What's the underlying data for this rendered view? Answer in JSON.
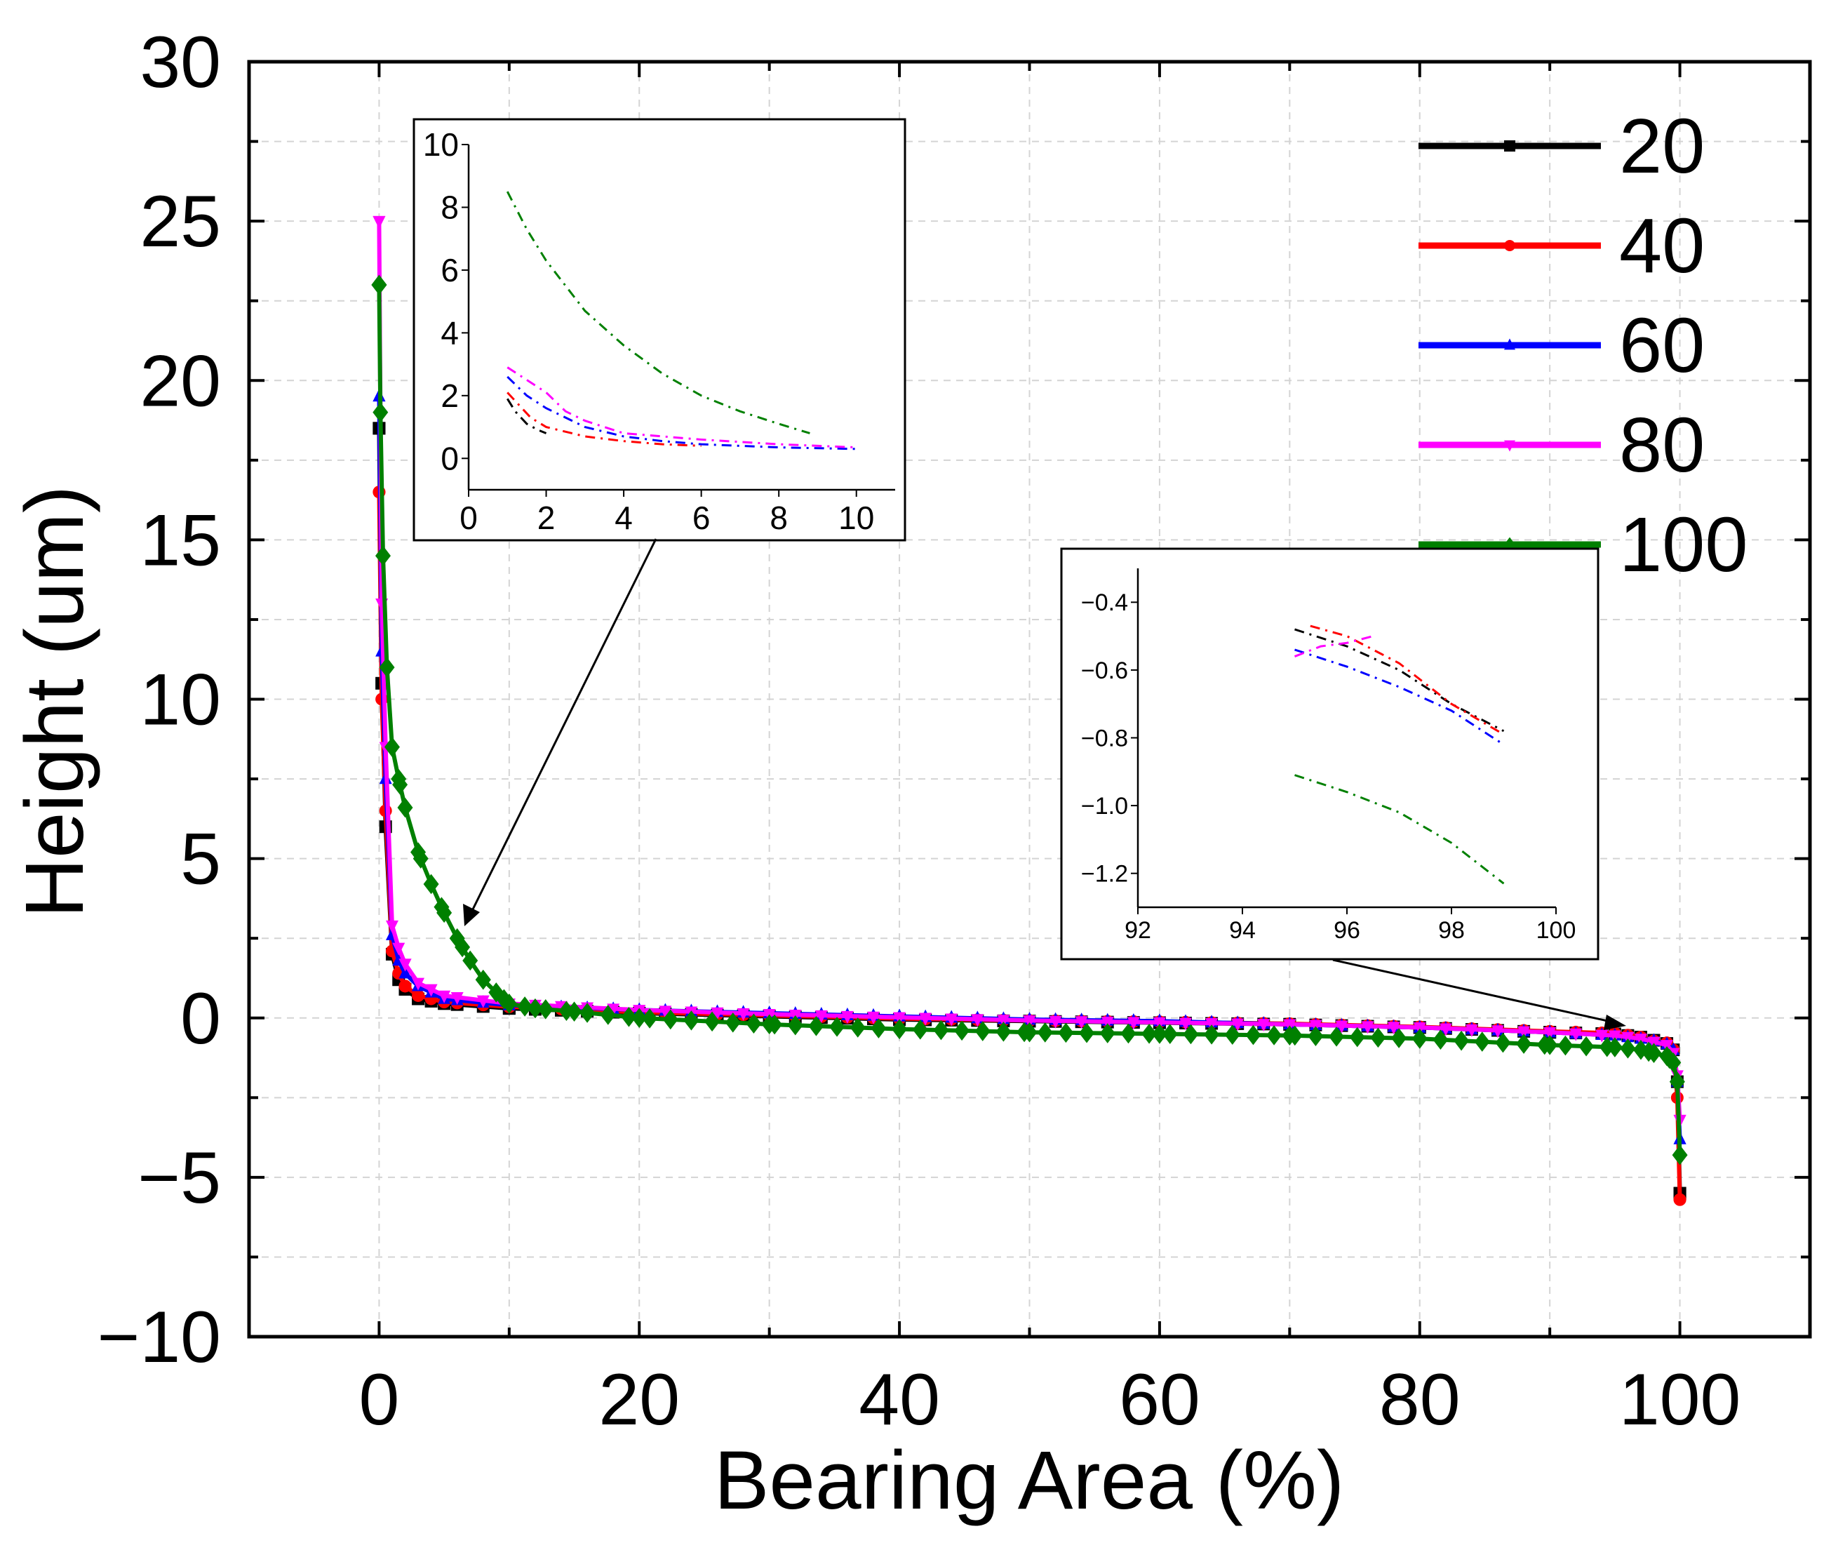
{
  "chart_data": {
    "type": "line",
    "xlabel": "Bearing Area (%)",
    "ylabel": "Height (um)",
    "xlim": [
      -10,
      110
    ],
    "ylim": [
      -10,
      30
    ],
    "xticks": [
      "0",
      "20",
      "40",
      "60",
      "80",
      "100"
    ],
    "yticks": [
      "30",
      "25",
      "20",
      "15",
      "10",
      "5",
      "0",
      "−5",
      "−10"
    ],
    "legend_position": "top-right",
    "legend": [
      "20",
      "40",
      "60",
      "80",
      "100"
    ],
    "series": [
      {
        "name": "20",
        "color": "#000000",
        "marker": "square",
        "x": [
          0,
          0.2,
          0.5,
          1,
          1.5,
          2,
          3,
          5,
          10,
          20,
          30,
          40,
          50,
          60,
          70,
          80,
          90,
          95,
          97,
          98,
          99,
          99.5,
          99.8,
          100
        ],
        "y": [
          18.5,
          10.5,
          6.0,
          2.0,
          1.2,
          0.9,
          0.6,
          0.45,
          0.3,
          0.15,
          0.05,
          -0.05,
          -0.1,
          -0.15,
          -0.2,
          -0.3,
          -0.45,
          -0.5,
          -0.6,
          -0.7,
          -0.8,
          -1.0,
          -2.0,
          -5.5
        ]
      },
      {
        "name": "40",
        "color": "#ff0000",
        "marker": "circle",
        "x": [
          0,
          0.2,
          0.5,
          1,
          1.5,
          2,
          3,
          5,
          10,
          20,
          30,
          40,
          50,
          60,
          70,
          80,
          90,
          95,
          97,
          98,
          99,
          99.5,
          99.8,
          100
        ],
        "y": [
          16.5,
          10.0,
          6.5,
          2.1,
          1.4,
          1.0,
          0.7,
          0.5,
          0.35,
          0.18,
          0.08,
          -0.02,
          -0.08,
          -0.12,
          -0.18,
          -0.28,
          -0.42,
          -0.48,
          -0.6,
          -0.72,
          -0.78,
          -1.0,
          -2.5,
          -5.7
        ]
      },
      {
        "name": "60",
        "color": "#0000ff",
        "marker": "triangle-up",
        "x": [
          0,
          0.2,
          0.5,
          1,
          1.5,
          2,
          3,
          5,
          10,
          20,
          30,
          40,
          50,
          60,
          70,
          80,
          90,
          95,
          97,
          98,
          99,
          99.5,
          99.8,
          100
        ],
        "y": [
          19.5,
          11.5,
          7.5,
          2.6,
          1.8,
          1.4,
          1.0,
          0.6,
          0.4,
          0.25,
          0.15,
          0.05,
          -0.05,
          -0.1,
          -0.2,
          -0.3,
          -0.45,
          -0.55,
          -0.65,
          -0.72,
          -0.82,
          -1.0,
          -2.0,
          -3.8
        ]
      },
      {
        "name": "80",
        "color": "#ff00ff",
        "marker": "triangle-down",
        "x": [
          0,
          0.2,
          0.5,
          1,
          1.5,
          2,
          3,
          5,
          10,
          20,
          30,
          40,
          50,
          60,
          70,
          80,
          90,
          95,
          97,
          98,
          99,
          99.5,
          99.8,
          100
        ],
        "y": [
          25.0,
          13.0,
          8.5,
          2.9,
          2.2,
          1.7,
          1.1,
          0.7,
          0.45,
          0.25,
          0.12,
          0.02,
          -0.08,
          -0.14,
          -0.2,
          -0.3,
          -0.45,
          -0.55,
          -0.65,
          -0.75,
          -0.85,
          -1.1,
          -1.8,
          -3.2
        ]
      },
      {
        "name": "100",
        "color": "#008000",
        "marker": "diamond",
        "x": [
          0,
          0.1,
          0.3,
          0.6,
          1,
          1.5,
          2,
          3,
          4,
          5,
          6,
          7,
          8,
          9,
          10,
          12,
          15,
          20,
          30,
          40,
          50,
          60,
          70,
          80,
          90,
          95,
          97,
          98,
          99,
          99.5,
          99.8,
          100
        ],
        "y": [
          23.0,
          19.0,
          14.5,
          11.0,
          8.5,
          7.5,
          6.6,
          5.2,
          4.2,
          3.3,
          2.5,
          1.8,
          1.2,
          0.8,
          0.45,
          0.3,
          0.2,
          0.0,
          -0.2,
          -0.35,
          -0.45,
          -0.5,
          -0.55,
          -0.65,
          -0.85,
          -0.92,
          -1.0,
          -1.1,
          -1.2,
          -1.4,
          -2.0,
          -4.3
        ]
      }
    ],
    "insets": [
      {
        "name": "inset-low",
        "xlim": [
          0,
          11
        ],
        "ylim": [
          -1,
          10
        ],
        "xticks": [
          "0",
          "2",
          "4",
          "6",
          "8",
          "10"
        ],
        "yticks": [
          "10",
          "8",
          "6",
          "4",
          "2",
          "0"
        ],
        "series": [
          {
            "name": "20",
            "x": [
              1,
              1.2,
              1.5,
              1.8,
              2.0
            ],
            "y": [
              1.9,
              1.5,
              1.1,
              0.9,
              0.8
            ]
          },
          {
            "name": "40",
            "x": [
              1,
              1.3,
              1.6,
              2.0,
              3,
              4,
              5,
              6
            ],
            "y": [
              2.1,
              1.7,
              1.3,
              1.0,
              0.7,
              0.55,
              0.45,
              0.4
            ]
          },
          {
            "name": "60",
            "x": [
              1,
              1.5,
              2,
              2.5,
              3,
              4,
              5,
              6,
              8,
              10
            ],
            "y": [
              2.6,
              2.0,
              1.6,
              1.3,
              1.0,
              0.7,
              0.55,
              0.45,
              0.35,
              0.3
            ]
          },
          {
            "name": "80",
            "x": [
              1,
              1.5,
              2,
              2.5,
              3,
              4,
              6,
              8,
              10
            ],
            "y": [
              2.9,
              2.5,
              2.1,
              1.5,
              1.2,
              0.8,
              0.6,
              0.45,
              0.35
            ]
          },
          {
            "name": "100",
            "x": [
              1,
              1.5,
              2,
              2.5,
              3,
              4,
              5,
              6,
              7,
              8,
              8.8
            ],
            "y": [
              8.5,
              7.3,
              6.3,
              5.5,
              4.7,
              3.6,
              2.7,
              2.0,
              1.5,
              1.1,
              0.8
            ]
          }
        ]
      },
      {
        "name": "inset-high",
        "xlim": [
          92,
          100
        ],
        "ylim": [
          -1.3,
          -0.3
        ],
        "xticks": [
          "92",
          "94",
          "96",
          "98",
          "100"
        ],
        "yticks": [
          "−0.4",
          "−0.6",
          "−0.8",
          "−1.0",
          "−1.2"
        ],
        "series": [
          {
            "name": "20",
            "x": [
              95,
              96,
              97,
              98,
              99
            ],
            "y": [
              -0.48,
              -0.53,
              -0.6,
              -0.7,
              -0.78
            ]
          },
          {
            "name": "40",
            "x": [
              95.3,
              96,
              97,
              98,
              99
            ],
            "y": [
              -0.47,
              -0.5,
              -0.58,
              -0.7,
              -0.79
            ]
          },
          {
            "name": "60",
            "x": [
              95,
              96,
              97,
              98,
              99
            ],
            "y": [
              -0.54,
              -0.59,
              -0.65,
              -0.72,
              -0.82
            ]
          },
          {
            "name": "80",
            "x": [
              95,
              95.5,
              96,
              96.5
            ],
            "y": [
              -0.56,
              -0.53,
              -0.52,
              -0.5
            ]
          },
          {
            "name": "100",
            "x": [
              95,
              96,
              97,
              98,
              99
            ],
            "y": [
              -0.91,
              -0.96,
              -1.02,
              -1.11,
              -1.23
            ]
          }
        ]
      }
    ]
  }
}
